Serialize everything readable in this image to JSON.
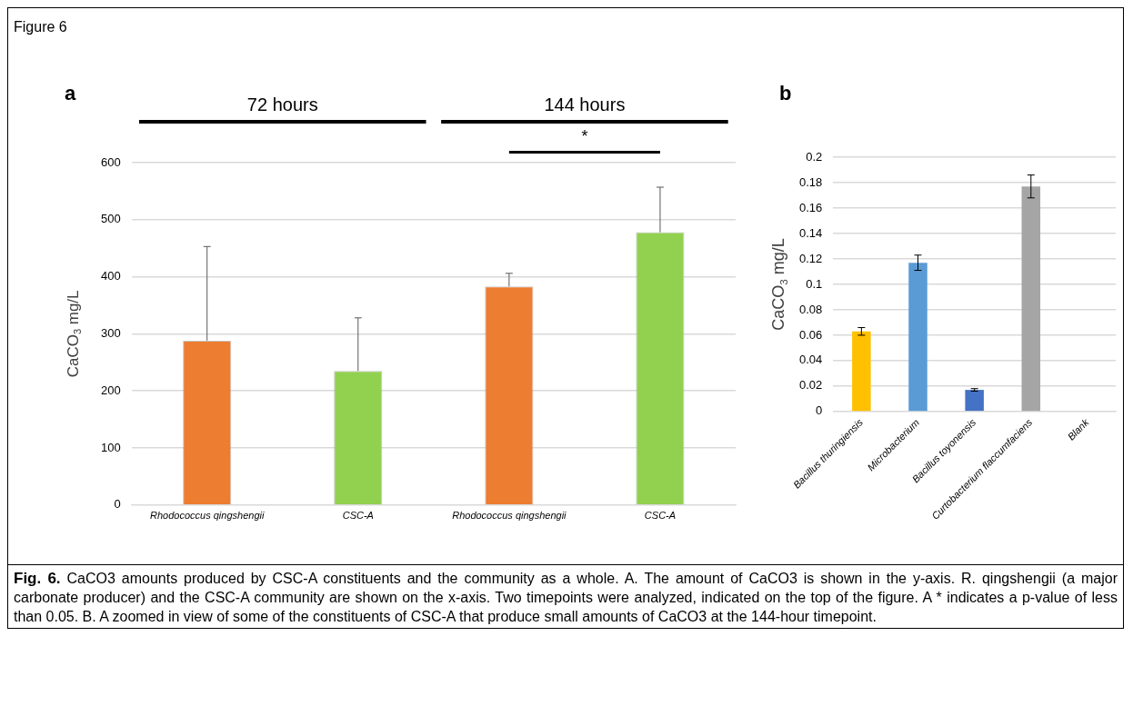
{
  "chart_data": [
    {
      "type": "bar",
      "title": "a",
      "ylabel": "CaCO$_{3}$ mg/L",
      "categories": [
        "Rhodococcus qingshengii",
        "CSC-A",
        "Rhodococcus qingshengii",
        "CSC-A"
      ],
      "values": [
        288,
        235,
        383,
        478
      ],
      "colors": [
        "#ed7d31",
        "#92d050",
        "#ed7d31",
        "#92d050"
      ],
      "errors": [
        [
          288,
          453
        ],
        [
          235,
          328
        ],
        [
          383,
          406
        ],
        [
          478,
          557
        ]
      ],
      "ylim": [
        0,
        600
      ],
      "yticks": [
        0,
        100,
        200,
        300,
        400,
        500,
        600
      ],
      "grid": "y",
      "annotations": [
        "72 hours",
        "144 hours",
        "*",
        "Figure 6",
        "Fig. 6.",
        "CaCO3 amounts produced by CSC-A constituents and the community as a whole. A. The amount of CaCO3 is shown in the y-axis.  R. qingshengii (a major carbonate producer) and the CSC-A community are shown on the x-axis. Two timepoints were analyzed, indicated on the top of the figure. A * indicates a p-value of less than 0.05. B. A zoomed in view of some of the constituents of CSC-A that produce small amounts of CaCO3 at the 144-hour timepoint."
      ]
    },
    {
      "type": "bar",
      "title": "b",
      "ylabel": "CaCO$_{3}$ mg/L",
      "categories": [
        "Bacillus thuringiensis",
        "Microbacterium",
        "Bacillus toyonensis",
        "Curtobacterium flaccumfaciens",
        "Blank"
      ],
      "values": [
        0.063,
        0.117,
        0.017,
        0.177,
        0
      ],
      "colors": [
        "#ffc000",
        "#5b9bd5",
        "#4472c4",
        "#a5a5a5",
        null
      ],
      "errors": [
        0.003,
        0.006,
        0.001,
        0.009,
        null
      ],
      "ylim": [
        0,
        0.2
      ],
      "yticks": [
        0,
        0.02,
        0.04,
        0.06,
        0.08,
        0.1,
        0.12,
        0.14,
        0.16,
        0.18,
        0.2
      ],
      "grid": "y"
    }
  ]
}
